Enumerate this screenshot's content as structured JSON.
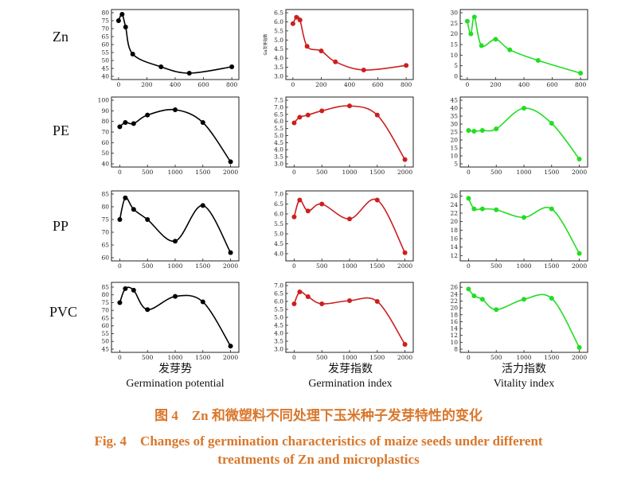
{
  "row_labels": [
    "Zn",
    "PE",
    "PP",
    "PVC"
  ],
  "column_labels": [
    {
      "cn": "发芽势",
      "en": "Germination potential"
    },
    {
      "cn": "发芽指数",
      "en": "Germination index"
    },
    {
      "cn": "活力指数",
      "en": "Vitality index"
    }
  ],
  "caption": {
    "cn": "图 4　Zn 和微塑料不同处理下玉米种子发芽特性的变化",
    "en_line1": "Fig. 4　Changes of germination characteristics of maize seeds under different",
    "en_line2": "treatments of Zn and microplastics"
  },
  "colors": {
    "potential": "#000000",
    "index": "#cc1f1f",
    "vitality": "#22dd22"
  },
  "chart_data": [
    {
      "type": "line",
      "row": "Zn",
      "column": "Germination potential",
      "color": "#000000",
      "ylabel": "",
      "x": [
        0,
        25,
        50,
        100,
        300,
        500,
        800
      ],
      "values": [
        75,
        79,
        71,
        54,
        46,
        42,
        46
      ],
      "xlim": [
        -50,
        850
      ],
      "ylim": [
        40,
        80
      ],
      "yticks": [
        40,
        45,
        50,
        55,
        60,
        65,
        70,
        75,
        80
      ],
      "xticks": [
        0,
        200,
        400,
        600,
        800
      ]
    },
    {
      "type": "line",
      "row": "Zn",
      "column": "Germination index",
      "color": "#cc1f1f",
      "ylabel": "Ga发芽指数",
      "x": [
        0,
        25,
        50,
        100,
        200,
        300,
        500,
        800
      ],
      "values": [
        5.9,
        6.25,
        6.1,
        4.65,
        4.4,
        3.8,
        3.35,
        3.6
      ],
      "xlim": [
        -50,
        850
      ],
      "ylim": [
        3.0,
        6.5
      ],
      "yticks": [
        3.0,
        3.5,
        4.0,
        4.5,
        5.0,
        5.5,
        6.0,
        6.5
      ],
      "xticks": [
        0,
        200,
        400,
        600,
        800
      ]
    },
    {
      "type": "line",
      "row": "Zn",
      "column": "Vitality index",
      "color": "#22dd22",
      "ylabel": "",
      "x": [
        0,
        25,
        50,
        100,
        200,
        300,
        500,
        800
      ],
      "values": [
        26,
        20,
        28,
        14.5,
        17.5,
        12.5,
        7.5,
        1.5
      ],
      "xlim": [
        -50,
        850
      ],
      "ylim": [
        0,
        30
      ],
      "yticks": [
        0,
        5,
        10,
        15,
        20,
        25,
        30
      ],
      "xticks": [
        0,
        200,
        400,
        600,
        800
      ]
    },
    {
      "type": "line",
      "row": "PE",
      "column": "Germination potential",
      "color": "#000000",
      "ylabel": "",
      "x": [
        0,
        100,
        250,
        500,
        1000,
        1500,
        2000
      ],
      "values": [
        75,
        79,
        78,
        86,
        91,
        79,
        42
      ],
      "xlim": [
        -150,
        2150
      ],
      "ylim": [
        40,
        100
      ],
      "yticks": [
        40,
        50,
        60,
        70,
        80,
        90,
        100
      ],
      "xticks": [
        0,
        500,
        1000,
        1500,
        2000
      ]
    },
    {
      "type": "line",
      "row": "PE",
      "column": "Germination index",
      "color": "#cc1f1f",
      "ylabel": "",
      "x": [
        0,
        100,
        250,
        500,
        1000,
        1500,
        2000
      ],
      "values": [
        5.9,
        6.3,
        6.45,
        6.75,
        7.1,
        6.45,
        3.3
      ],
      "xlim": [
        -150,
        2150
      ],
      "ylim": [
        3.0,
        7.5
      ],
      "yticks": [
        3.0,
        3.5,
        4.0,
        4.5,
        5.0,
        5.5,
        6.0,
        6.5,
        7.0,
        7.5
      ],
      "xticks": [
        0,
        500,
        1000,
        1500,
        2000
      ]
    },
    {
      "type": "line",
      "row": "PE",
      "column": "Vitality index",
      "color": "#22dd22",
      "ylabel": "",
      "x": [
        0,
        100,
        250,
        500,
        1000,
        1500,
        2000
      ],
      "values": [
        26,
        25.5,
        26,
        27,
        40,
        30.5,
        8
      ],
      "xlim": [
        -150,
        2150
      ],
      "ylim": [
        5,
        45
      ],
      "yticks": [
        5,
        10,
        15,
        20,
        25,
        30,
        35,
        40,
        45
      ],
      "xticks": [
        0,
        500,
        1000,
        1500,
        2000
      ]
    },
    {
      "type": "line",
      "row": "PP",
      "column": "Germination potential",
      "color": "#000000",
      "ylabel": "",
      "x": [
        0,
        100,
        250,
        500,
        1000,
        1500,
        2000
      ],
      "values": [
        75,
        83.5,
        79,
        75,
        66.5,
        80.5,
        62
      ],
      "xlim": [
        -150,
        2150
      ],
      "ylim": [
        60,
        85
      ],
      "yticks": [
        60,
        65,
        70,
        75,
        80,
        85
      ],
      "xticks": [
        0,
        500,
        1000,
        1500,
        2000
      ]
    },
    {
      "type": "line",
      "row": "PP",
      "column": "Germination index",
      "color": "#cc1f1f",
      "ylabel": "",
      "x": [
        0,
        100,
        250,
        500,
        1000,
        1500,
        2000
      ],
      "values": [
        5.85,
        6.7,
        6.15,
        6.5,
        5.75,
        6.7,
        4.05
      ],
      "xlim": [
        -150,
        2150
      ],
      "ylim": [
        3.8,
        7.0
      ],
      "yticks": [
        4.0,
        4.5,
        5.0,
        5.5,
        6.0,
        6.5,
        7.0
      ],
      "xticks": [
        0,
        500,
        1000,
        1500,
        2000
      ]
    },
    {
      "type": "line",
      "row": "PP",
      "column": "Vitality index",
      "color": "#22dd22",
      "ylabel": "",
      "x": [
        0,
        100,
        250,
        500,
        1000,
        1500,
        2000
      ],
      "values": [
        25.5,
        23,
        23,
        22.8,
        21,
        23,
        12.5
      ],
      "xlim": [
        -150,
        2150
      ],
      "ylim": [
        11.5,
        26.5
      ],
      "yticks": [
        12,
        14,
        16,
        18,
        20,
        22,
        24,
        26
      ],
      "xticks": [
        0,
        500,
        1000,
        1500,
        2000
      ]
    },
    {
      "type": "line",
      "row": "PVC",
      "column": "Germination potential",
      "color": "#000000",
      "ylabel": "",
      "x": [
        0,
        100,
        250,
        500,
        1000,
        1500,
        2000
      ],
      "values": [
        75,
        84,
        83,
        70.5,
        79,
        75.5,
        47
      ],
      "xlim": [
        -150,
        2150
      ],
      "ylim": [
        45,
        86
      ],
      "yticks": [
        45,
        50,
        55,
        60,
        65,
        70,
        75,
        80,
        85
      ],
      "xticks": [
        0,
        500,
        1000,
        1500,
        2000
      ]
    },
    {
      "type": "line",
      "row": "PVC",
      "column": "Germination index",
      "color": "#cc1f1f",
      "ylabel": "",
      "x": [
        0,
        100,
        250,
        500,
        1000,
        1500,
        2000
      ],
      "values": [
        5.85,
        6.6,
        6.3,
        5.85,
        6.05,
        6.0,
        3.3
      ],
      "xlim": [
        -150,
        2150
      ],
      "ylim": [
        3.0,
        7.0
      ],
      "yticks": [
        3.0,
        3.5,
        4.0,
        4.5,
        5.0,
        5.5,
        6.0,
        6.5,
        7.0
      ],
      "xticks": [
        0,
        500,
        1000,
        1500,
        2000
      ]
    },
    {
      "type": "line",
      "row": "PVC",
      "column": "Vitality index",
      "color": "#22dd22",
      "ylabel": "",
      "x": [
        0,
        100,
        250,
        500,
        1000,
        1500,
        2000
      ],
      "values": [
        25.5,
        23.5,
        22.5,
        19.5,
        22.5,
        22.8,
        8.5
      ],
      "xlim": [
        -150,
        2150
      ],
      "ylim": [
        8,
        26.5
      ],
      "yticks": [
        8,
        10,
        12,
        14,
        16,
        18,
        20,
        22,
        24,
        26
      ],
      "xticks": [
        0,
        500,
        1000,
        1500,
        2000
      ]
    }
  ]
}
